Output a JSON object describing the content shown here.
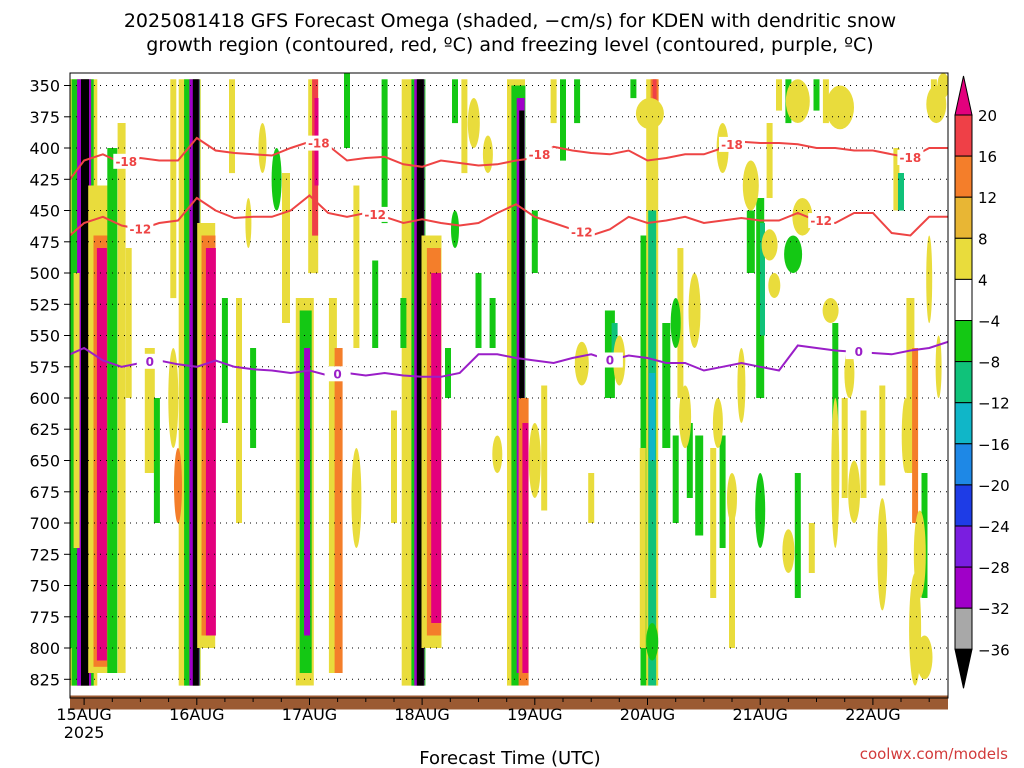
{
  "title": {
    "line1": "2025081418 GFS Forecast Omega (shaded, −cm/s) for KDEN with dendritic snow",
    "line2": "growth region (contoured, red, ºC) and freezing level (contoured, purple, ºC)"
  },
  "credit": "coolwx.com/models",
  "chart_data": {
    "type": "heatmap",
    "xlabel": "Forecast Time (UTC)",
    "x_ticks": [
      "15AUG",
      "16AUG",
      "17AUG",
      "18AUG",
      "19AUG",
      "20AUG",
      "21AUG",
      "22AUG"
    ],
    "x_tick_sublabel": "2025",
    "x_range_hours_from_15AUG00": [
      -3,
      184
    ],
    "y_ticks": [
      350,
      375,
      400,
      425,
      450,
      475,
      500,
      525,
      550,
      575,
      600,
      625,
      650,
      675,
      700,
      725,
      750,
      775,
      800,
      825
    ],
    "y_range_hPa": [
      340,
      840
    ],
    "y_axis_reversed": true,
    "grid": "dotted",
    "colorbar": {
      "position": "right",
      "labels": [
        "20",
        "16",
        "12",
        "8",
        "4",
        "−4",
        "−8",
        "−12",
        "−16",
        "−20",
        "−24",
        "−28",
        "−32",
        "−36"
      ],
      "bins": [
        {
          "label": ">20",
          "color": "#e3007d"
        },
        {
          "label": "16 to 20",
          "color": "#ef4047"
        },
        {
          "label": "12 to 16",
          "color": "#f47e2a"
        },
        {
          "label": "8 to 12",
          "color": "#e8b634"
        },
        {
          "label": "4 to 8",
          "color": "#e9dc3c"
        },
        {
          "label": "-4 to 4",
          "color": "#ffffff"
        },
        {
          "label": "-8 to -4",
          "color": "#14c814"
        },
        {
          "label": "-12 to -8",
          "color": "#10c27a"
        },
        {
          "label": "-16 to -12",
          "color": "#10b6c8"
        },
        {
          "label": "-20 to -16",
          "color": "#1e88e6"
        },
        {
          "label": "-24 to -20",
          "color": "#1e3ce6"
        },
        {
          "label": "-28 to -24",
          "color": "#7a1ee0"
        },
        {
          "label": "-32 to -28",
          "color": "#a000c8"
        },
        {
          "label": "-36 to -32",
          "color": "#a8a8a8"
        },
        {
          "label": "<-36",
          "color": "#000000"
        }
      ]
    },
    "contours": [
      {
        "value": "-18",
        "color": "#ee4444",
        "label_hours": [
          9,
          50,
          97,
          138,
          176
        ],
        "x_hours": [
          -3,
          0,
          4,
          8,
          12,
          16,
          20,
          24,
          28,
          32,
          36,
          40,
          44,
          48,
          52,
          56,
          60,
          64,
          68,
          72,
          76,
          80,
          84,
          88,
          92,
          96,
          100,
          104,
          108,
          112,
          116,
          120,
          124,
          128,
          132,
          136,
          140,
          144,
          148,
          152,
          156,
          160,
          164,
          168,
          172,
          176,
          180,
          184
        ],
        "p_hPa": [
          425,
          410,
          405,
          412,
          408,
          410,
          410,
          392,
          402,
          404,
          405,
          406,
          400,
          395,
          398,
          410,
          408,
          407,
          413,
          415,
          410,
          412,
          414,
          413,
          410,
          408,
          399,
          402,
          404,
          405,
          402,
          410,
          408,
          405,
          405,
          400,
          395,
          396,
          396,
          397,
          400,
          400,
          402,
          402,
          405,
          408,
          400,
          400
        ]
      },
      {
        "value": "-12",
        "color": "#ee4444",
        "label_hours": [
          12,
          62,
          106,
          157
        ],
        "x_hours": [
          -3,
          0,
          4,
          8,
          12,
          16,
          20,
          24,
          28,
          32,
          36,
          40,
          44,
          48,
          52,
          56,
          60,
          64,
          68,
          72,
          76,
          80,
          84,
          88,
          92,
          96,
          100,
          104,
          108,
          112,
          116,
          120,
          124,
          128,
          132,
          136,
          140,
          144,
          148,
          152,
          156,
          160,
          164,
          168,
          172,
          176,
          180,
          184
        ],
        "p_hPa": [
          470,
          460,
          455,
          462,
          465,
          460,
          458,
          440,
          450,
          456,
          455,
          455,
          450,
          438,
          452,
          455,
          452,
          455,
          460,
          457,
          460,
          462,
          460,
          452,
          445,
          455,
          460,
          465,
          470,
          465,
          455,
          460,
          458,
          455,
          460,
          458,
          456,
          458,
          458,
          452,
          458,
          460,
          452,
          452,
          468,
          470,
          455,
          455
        ]
      },
      {
        "value": "0",
        "color": "#9a1ec8",
        "label_hours": [
          14,
          54,
          112,
          165
        ],
        "x_hours": [
          -3,
          0,
          4,
          8,
          12,
          16,
          20,
          24,
          28,
          32,
          36,
          40,
          44,
          48,
          52,
          56,
          60,
          64,
          68,
          72,
          76,
          80,
          84,
          88,
          92,
          96,
          100,
          104,
          108,
          112,
          116,
          120,
          124,
          128,
          132,
          136,
          140,
          144,
          148,
          152,
          156,
          160,
          164,
          168,
          172,
          176,
          180,
          184
        ],
        "p_hPa": [
          565,
          560,
          570,
          575,
          572,
          570,
          573,
          575,
          570,
          575,
          577,
          578,
          580,
          578,
          582,
          580,
          582,
          580,
          582,
          583,
          583,
          580,
          565,
          565,
          568,
          570,
          572,
          568,
          565,
          570,
          566,
          568,
          572,
          572,
          578,
          575,
          572,
          575,
          578,
          558,
          560,
          562,
          563,
          564,
          565,
          562,
          560,
          555
        ]
      }
    ],
    "ground_level_hPa": 838
  }
}
